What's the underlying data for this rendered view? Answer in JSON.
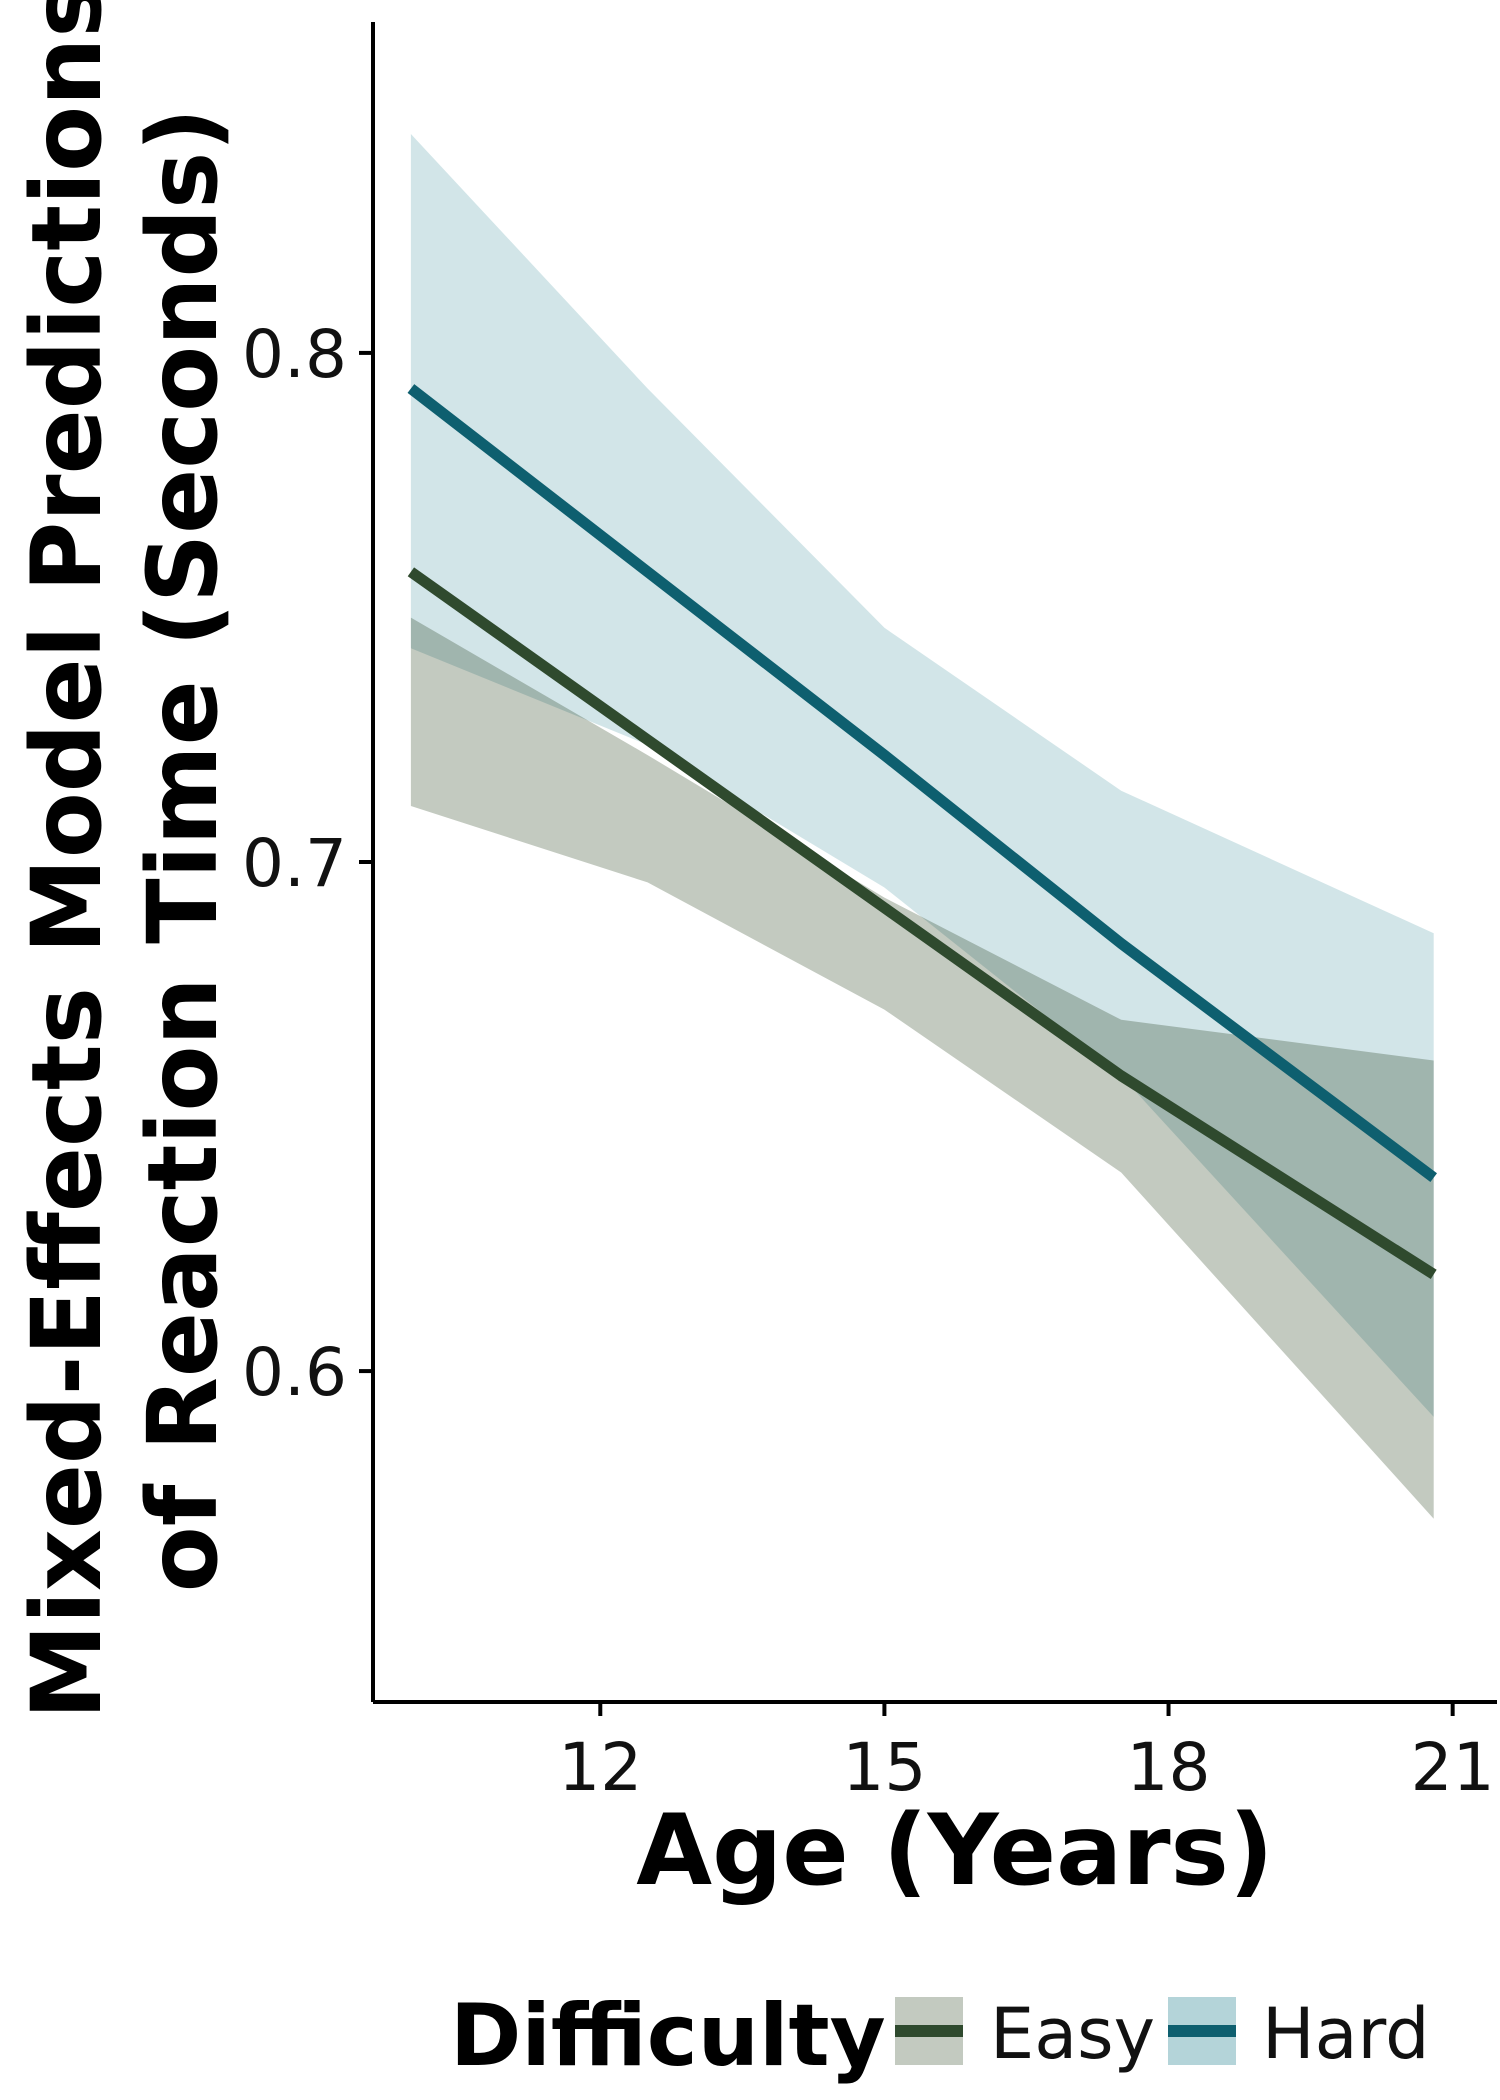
{
  "chart_data": {
    "type": "line",
    "xlabel": "Age (Years)",
    "ylabel_lines": [
      "Mixed-Effects Model Predictions",
      "of Reaction Time (Seconds)"
    ],
    "xlim": [
      9.6,
      21.5
    ],
    "ylim": [
      0.535,
      0.865
    ],
    "x_ticks": [
      12,
      15,
      18,
      21
    ],
    "x_tick_labels": [
      "12",
      "15",
      "18",
      "21"
    ],
    "y_ticks": [
      0.6,
      0.7,
      0.8
    ],
    "y_tick_labels": [
      "0.6",
      "0.7",
      "0.8"
    ],
    "grid": false,
    "legend": {
      "title": "Difficulty",
      "position": "bottom"
    },
    "series": [
      {
        "name": "Easy",
        "line_color": "#2f4a2e",
        "band_color": "#c3cac0",
        "x": [
          10.0,
          12.5,
          15.0,
          17.5,
          20.8
        ],
        "y": [
          0.757,
          0.724,
          0.691,
          0.658,
          0.619
        ],
        "lower": [
          0.711,
          0.696,
          0.671,
          0.639,
          0.571
        ],
        "upper": [
          0.748,
          0.721,
          0.693,
          0.669,
          0.661
        ]
      },
      {
        "name": "Hard",
        "line_color": "#0e5f6f",
        "band_color": "#b4d4d9",
        "x": [
          10.0,
          12.5,
          15.0,
          17.5,
          20.8
        ],
        "y": [
          0.793,
          0.757,
          0.721,
          0.684,
          0.638
        ],
        "lower": [
          0.742,
          0.723,
          0.695,
          0.658,
          0.591
        ],
        "upper": [
          0.843,
          0.793,
          0.746,
          0.714,
          0.686
        ]
      }
    ]
  }
}
